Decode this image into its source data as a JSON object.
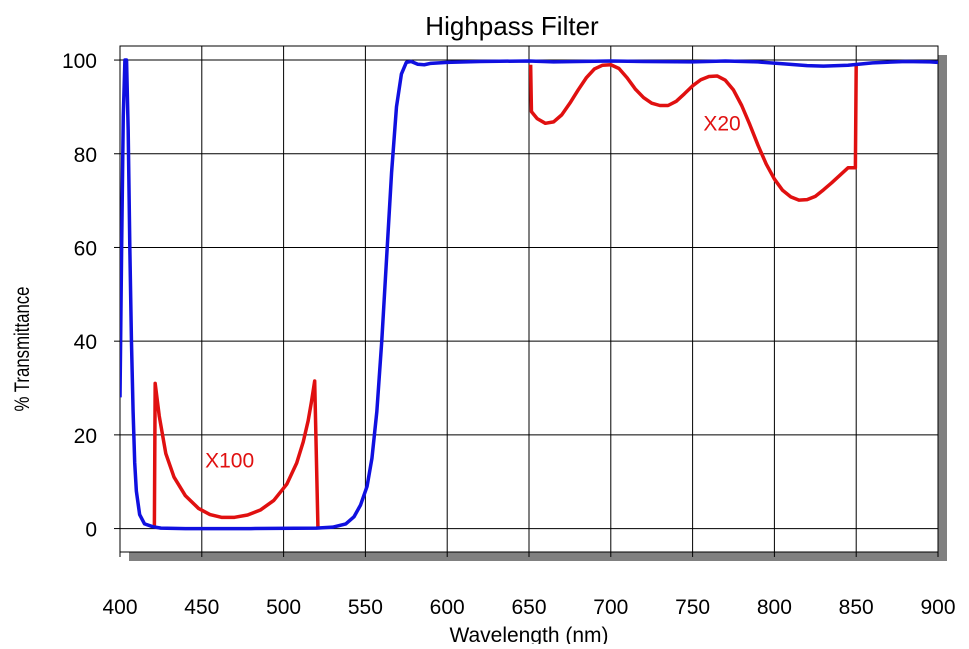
{
  "chart_data": {
    "type": "line",
    "title": "Highpass Filter",
    "xlabel": "Wavelength (nm)",
    "ylabel": "% Transmittance",
    "xlim": [
      400,
      900
    ],
    "ylim": [
      -5,
      103
    ],
    "x_ticks": [
      400,
      450,
      500,
      550,
      600,
      650,
      700,
      750,
      800,
      850,
      900
    ],
    "y_ticks": [
      0,
      20,
      40,
      60,
      80,
      100
    ],
    "grid": true,
    "legend": "none",
    "series": [
      {
        "color": "#1010e0",
        "points": [
          [
            400,
            28
          ],
          [
            401,
            60
          ],
          [
            402,
            88
          ],
          [
            403,
            100
          ],
          [
            404,
            100
          ],
          [
            405,
            85
          ],
          [
            406,
            60
          ],
          [
            407,
            40
          ],
          [
            408,
            25
          ],
          [
            409,
            14
          ],
          [
            410,
            8
          ],
          [
            412,
            3
          ],
          [
            415,
            1
          ],
          [
            420,
            0.4
          ],
          [
            425,
            0.1
          ],
          [
            440,
            0
          ],
          [
            480,
            0
          ],
          [
            520,
            0.1
          ],
          [
            530,
            0.3
          ],
          [
            538,
            1
          ],
          [
            543,
            2.5
          ],
          [
            547,
            5
          ],
          [
            551,
            9
          ],
          [
            554,
            15
          ],
          [
            557,
            25
          ],
          [
            560,
            40
          ],
          [
            563,
            58
          ],
          [
            566,
            76
          ],
          [
            569,
            90
          ],
          [
            572,
            97
          ],
          [
            575,
            99.5
          ],
          [
            578,
            99.7
          ],
          [
            582,
            99.1
          ],
          [
            586,
            99.0
          ],
          [
            590,
            99.3
          ],
          [
            600,
            99.5
          ],
          [
            620,
            99.7
          ],
          [
            650,
            99.8
          ],
          [
            665,
            99.6
          ],
          [
            680,
            99.7
          ],
          [
            700,
            99.8
          ],
          [
            720,
            99.7
          ],
          [
            750,
            99.6
          ],
          [
            770,
            99.8
          ],
          [
            790,
            99.6
          ],
          [
            805,
            99.2
          ],
          [
            820,
            98.8
          ],
          [
            830,
            98.7
          ],
          [
            845,
            98.9
          ],
          [
            860,
            99.4
          ],
          [
            880,
            99.7
          ],
          [
            895,
            99.6
          ],
          [
            900,
            99.5
          ]
        ]
      },
      {
        "color": "#e01010",
        "points": [
          [
            421,
            0
          ],
          [
            421.5,
            31
          ],
          [
            424,
            24
          ],
          [
            428,
            16
          ],
          [
            433,
            11
          ],
          [
            440,
            7
          ],
          [
            448,
            4.3
          ],
          [
            455,
            3.0
          ],
          [
            462,
            2.4
          ],
          [
            470,
            2.4
          ],
          [
            478,
            2.9
          ],
          [
            486,
            4.0
          ],
          [
            494,
            6.0
          ],
          [
            502,
            9.5
          ],
          [
            508,
            14
          ],
          [
            512,
            18.5
          ],
          [
            515,
            23
          ],
          [
            517,
            27
          ],
          [
            519,
            31.5
          ],
          [
            521,
            0
          ]
        ]
      },
      {
        "color": "#e01010",
        "points": [
          [
            651,
            99
          ],
          [
            651.5,
            89
          ],
          [
            655,
            87.5
          ],
          [
            660,
            86.5
          ],
          [
            665,
            86.8
          ],
          [
            670,
            88.3
          ],
          [
            675,
            90.8
          ],
          [
            680,
            93.6
          ],
          [
            685,
            96.2
          ],
          [
            690,
            98.1
          ],
          [
            695,
            98.9
          ],
          [
            700,
            99.0
          ],
          [
            705,
            98.2
          ],
          [
            710,
            96.2
          ],
          [
            715,
            93.8
          ],
          [
            720,
            92.0
          ],
          [
            725,
            90.8
          ],
          [
            730,
            90.3
          ],
          [
            735,
            90.3
          ],
          [
            740,
            91.2
          ],
          [
            745,
            92.8
          ],
          [
            750,
            94.5
          ],
          [
            755,
            95.8
          ],
          [
            760,
            96.5
          ],
          [
            765,
            96.6
          ],
          [
            770,
            95.7
          ],
          [
            775,
            93.6
          ],
          [
            780,
            90.3
          ],
          [
            785,
            86.2
          ],
          [
            790,
            81.8
          ],
          [
            795,
            77.8
          ],
          [
            800,
            74.6
          ],
          [
            805,
            72.2
          ],
          [
            810,
            70.8
          ],
          [
            815,
            70.1
          ],
          [
            820,
            70.2
          ],
          [
            825,
            70.9
          ],
          [
            830,
            72.3
          ],
          [
            835,
            73.8
          ],
          [
            840,
            75.4
          ],
          [
            845,
            77.0
          ],
          [
            849.5,
            77
          ],
          [
            850,
            99
          ]
        ]
      }
    ],
    "annotations": [
      {
        "text": "X100",
        "x": 467,
        "y": 13,
        "color": "#e01010"
      },
      {
        "text": "X20",
        "x": 768,
        "y": 85,
        "color": "#e01010"
      }
    ]
  }
}
